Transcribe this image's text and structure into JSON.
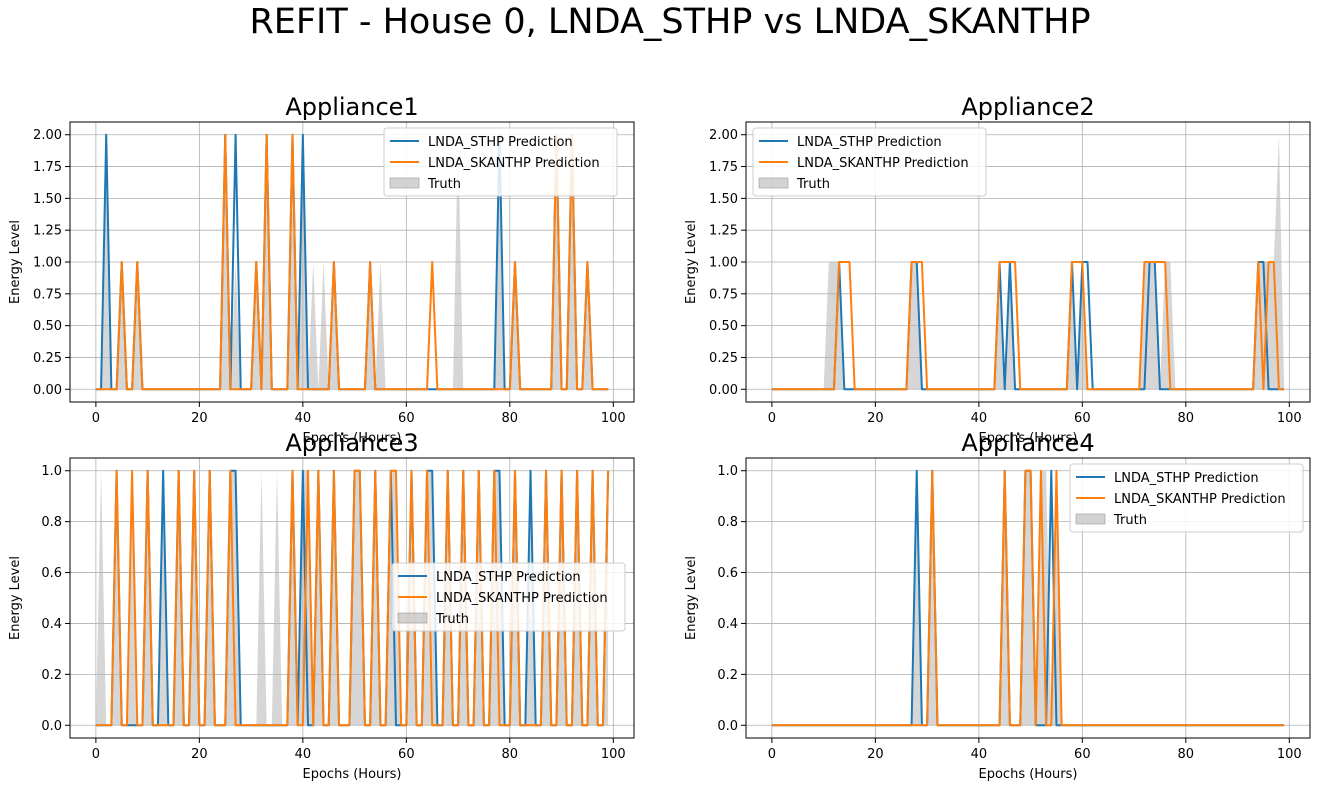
{
  "figure_title": "REFIT - House 0, LNDA_STHP vs LNDA_SKANTHP",
  "colors": {
    "stbp": "#1f77b4",
    "skanthp": "#ff7f0e",
    "truth": "#b5b5b5",
    "grid": "#b0b0b0"
  },
  "chart_data": [
    {
      "type": "line",
      "title": "Appliance1",
      "xlabel": "Epochs (Hours)",
      "ylabel": "Energy Level",
      "xlim": [
        -5,
        104
      ],
      "ylim": [
        -0.1,
        2.1
      ],
      "xticks": [
        0,
        20,
        40,
        60,
        80,
        100
      ],
      "xtick_labels": [
        "0",
        "20",
        "40",
        "60",
        "80",
        "100"
      ],
      "yticks": [
        0,
        0.25,
        0.5,
        0.75,
        1.0,
        1.25,
        1.5,
        1.75,
        2.0
      ],
      "ytick_labels": [
        "0.00",
        "0.25",
        "0.50",
        "0.75",
        "1.00",
        "1.25",
        "1.50",
        "1.75",
        "2.00"
      ],
      "grid": true,
      "legend": {
        "position": "upper right",
        "entries": [
          "LNDA_STHP Prediction",
          "LNDA_SKANTHP Prediction",
          "Truth"
        ]
      },
      "x_range": [
        0,
        99
      ],
      "series": [
        {
          "name": "LNDA_STHP Prediction",
          "nonzero": [
            [
              2,
              2
            ],
            [
              5,
              1
            ],
            [
              8,
              1
            ],
            [
              25,
              2
            ],
            [
              27,
              2
            ],
            [
              31,
              1
            ],
            [
              33,
              2
            ],
            [
              38,
              2
            ],
            [
              40,
              2
            ],
            [
              46,
              1
            ],
            [
              53,
              1
            ],
            [
              78,
              2
            ],
            [
              81,
              1
            ],
            [
              89,
              2
            ],
            [
              92,
              2
            ],
            [
              95,
              1
            ]
          ]
        },
        {
          "name": "LNDA_SKANTHP Prediction",
          "nonzero": [
            [
              5,
              1
            ],
            [
              8,
              1
            ],
            [
              25,
              2
            ],
            [
              31,
              1
            ],
            [
              33,
              2
            ],
            [
              38,
              2
            ],
            [
              46,
              1
            ],
            [
              53,
              1
            ],
            [
              65,
              1
            ],
            [
              81,
              1
            ],
            [
              89,
              2
            ],
            [
              92,
              2
            ],
            [
              95,
              1
            ]
          ]
        },
        {
          "name": "Truth",
          "nonzero": [
            [
              2,
              2
            ],
            [
              5,
              1
            ],
            [
              8,
              1
            ],
            [
              25,
              2
            ],
            [
              27,
              1
            ],
            [
              31,
              1
            ],
            [
              33,
              2
            ],
            [
              38,
              2
            ],
            [
              40,
              2
            ],
            [
              42,
              1
            ],
            [
              44,
              1
            ],
            [
              46,
              1
            ],
            [
              53,
              1
            ],
            [
              55,
              1
            ],
            [
              70,
              2
            ],
            [
              78,
              2
            ],
            [
              81,
              1
            ],
            [
              89,
              2
            ],
            [
              92,
              2
            ],
            [
              95,
              1
            ]
          ]
        }
      ]
    },
    {
      "type": "line",
      "title": "Appliance2",
      "xlabel": "Epochs (Hours)",
      "ylabel": "Energy Level",
      "xlim": [
        -5,
        104
      ],
      "ylim": [
        -0.1,
        2.1
      ],
      "xticks": [
        0,
        20,
        40,
        60,
        80,
        100
      ],
      "xtick_labels": [
        "0",
        "20",
        "40",
        "60",
        "80",
        "100"
      ],
      "yticks": [
        0,
        0.25,
        0.5,
        0.75,
        1.0,
        1.25,
        1.5,
        1.75,
        2.0
      ],
      "ytick_labels": [
        "0.00",
        "0.25",
        "0.50",
        "0.75",
        "1.00",
        "1.25",
        "1.50",
        "1.75",
        "2.00"
      ],
      "grid": true,
      "legend": {
        "position": "upper left",
        "entries": [
          "LNDA_STHP Prediction",
          "LNDA_SKANTHP Prediction",
          "Truth"
        ]
      },
      "x_range": [
        0,
        99
      ],
      "series": [
        {
          "name": "LNDA_STHP Prediction",
          "nonzero": [
            [
              13,
              1
            ],
            [
              27,
              1
            ],
            [
              28,
              1
            ],
            [
              44,
              1
            ],
            [
              46,
              1
            ],
            [
              58,
              1
            ],
            [
              60,
              1
            ],
            [
              61,
              1
            ],
            [
              73,
              1
            ],
            [
              74,
              1
            ],
            [
              94,
              1
            ],
            [
              95,
              1
            ]
          ]
        },
        {
          "name": "LNDA_SKANTHP Prediction",
          "nonzero": [
            [
              13,
              1
            ],
            [
              14,
              1
            ],
            [
              15,
              1
            ],
            [
              27,
              1
            ],
            [
              28,
              1
            ],
            [
              29,
              1
            ],
            [
              44,
              1
            ],
            [
              45,
              1
            ],
            [
              46,
              1
            ],
            [
              47,
              1
            ],
            [
              58,
              1
            ],
            [
              59,
              1
            ],
            [
              60,
              1
            ],
            [
              72,
              1
            ],
            [
              73,
              1
            ],
            [
              74,
              1
            ],
            [
              75,
              1
            ],
            [
              76,
              1
            ],
            [
              94,
              1
            ],
            [
              96,
              1
            ],
            [
              97,
              1
            ]
          ]
        },
        {
          "name": "Truth",
          "nonzero": [
            [
              11,
              1
            ],
            [
              12,
              1
            ],
            [
              13,
              1
            ],
            [
              27,
              1
            ],
            [
              28,
              1
            ],
            [
              44,
              1
            ],
            [
              46,
              1
            ],
            [
              58,
              1
            ],
            [
              60,
              1
            ],
            [
              72,
              1
            ],
            [
              73,
              1
            ],
            [
              74,
              1
            ],
            [
              76,
              1
            ],
            [
              77,
              1
            ],
            [
              94,
              1
            ],
            [
              95,
              1
            ],
            [
              96,
              1
            ],
            [
              97,
              1
            ],
            [
              98,
              2
            ]
          ]
        }
      ]
    },
    {
      "type": "line",
      "title": "Appliance3",
      "xlabel": "Epochs (Hours)",
      "ylabel": "Energy Level",
      "xlim": [
        -5,
        104
      ],
      "ylim": [
        -0.05,
        1.05
      ],
      "xticks": [
        0,
        20,
        40,
        60,
        80,
        100
      ],
      "xtick_labels": [
        "0",
        "20",
        "40",
        "60",
        "80",
        "100"
      ],
      "yticks": [
        0,
        0.2,
        0.4,
        0.6,
        0.8,
        1.0
      ],
      "ytick_labels": [
        "0.0",
        "0.2",
        "0.4",
        "0.6",
        "0.8",
        "1.0"
      ],
      "grid": true,
      "legend": {
        "position": "center right",
        "entries": [
          "LNDA_STHP Prediction",
          "LNDA_SKANTHP Prediction",
          "Truth"
        ]
      },
      "x_range": [
        0,
        99
      ],
      "series": [
        {
          "name": "LNDA_STHP Prediction",
          "nonzero": [
            [
              4,
              1
            ],
            [
              10,
              1
            ],
            [
              13,
              1
            ],
            [
              16,
              1
            ],
            [
              19,
              1
            ],
            [
              22,
              1
            ],
            [
              26,
              1
            ],
            [
              27,
              1
            ],
            [
              38,
              1
            ],
            [
              40,
              1
            ],
            [
              43,
              1
            ],
            [
              46,
              1
            ],
            [
              50,
              1
            ],
            [
              51,
              1
            ],
            [
              54,
              1
            ],
            [
              57,
              1
            ],
            [
              61,
              1
            ],
            [
              64,
              1
            ],
            [
              65,
              1
            ],
            [
              68,
              1
            ],
            [
              71,
              1
            ],
            [
              74,
              1
            ],
            [
              77,
              1
            ],
            [
              78,
              1
            ],
            [
              81,
              1
            ],
            [
              84,
              1
            ],
            [
              87,
              1
            ],
            [
              90,
              1
            ],
            [
              93,
              1
            ],
            [
              96,
              1
            ],
            [
              99,
              1
            ]
          ]
        },
        {
          "name": "LNDA_SKANTHP Prediction",
          "nonzero": [
            [
              4,
              1
            ],
            [
              7,
              1
            ],
            [
              10,
              1
            ],
            [
              16,
              1
            ],
            [
              19,
              1
            ],
            [
              22,
              1
            ],
            [
              26,
              1
            ],
            [
              38,
              1
            ],
            [
              41,
              1
            ],
            [
              43,
              1
            ],
            [
              46,
              1
            ],
            [
              50,
              1
            ],
            [
              51,
              1
            ],
            [
              54,
              1
            ],
            [
              57,
              1
            ],
            [
              58,
              1
            ],
            [
              61,
              1
            ],
            [
              64,
              1
            ],
            [
              68,
              1
            ],
            [
              71,
              1
            ],
            [
              74,
              1
            ],
            [
              77,
              1
            ],
            [
              81,
              1
            ],
            [
              87,
              1
            ],
            [
              90,
              1
            ],
            [
              93,
              1
            ],
            [
              96,
              1
            ],
            [
              99,
              1
            ]
          ]
        },
        {
          "name": "Truth",
          "nonzero": [
            [
              1,
              1
            ],
            [
              4,
              1
            ],
            [
              7,
              1
            ],
            [
              10,
              1
            ],
            [
              13,
              1
            ],
            [
              16,
              1
            ],
            [
              19,
              1
            ],
            [
              22,
              1
            ],
            [
              26,
              1
            ],
            [
              27,
              1
            ],
            [
              32,
              1
            ],
            [
              35,
              1
            ],
            [
              38,
              1
            ],
            [
              40,
              1
            ],
            [
              41,
              1
            ],
            [
              43,
              1
            ],
            [
              46,
              1
            ],
            [
              50,
              1
            ],
            [
              51,
              1
            ],
            [
              54,
              1
            ],
            [
              57,
              1
            ],
            [
              58,
              1
            ],
            [
              61,
              1
            ],
            [
              64,
              1
            ],
            [
              65,
              1
            ],
            [
              68,
              1
            ],
            [
              71,
              1
            ],
            [
              74,
              1
            ],
            [
              77,
              1
            ],
            [
              78,
              1
            ],
            [
              81,
              1
            ],
            [
              84,
              1
            ],
            [
              87,
              1
            ],
            [
              90,
              1
            ],
            [
              93,
              1
            ],
            [
              96,
              1
            ],
            [
              99,
              1
            ]
          ]
        }
      ]
    },
    {
      "type": "line",
      "title": "Appliance4",
      "xlabel": "Epochs (Hours)",
      "ylabel": "Energy Level",
      "xlim": [
        -5,
        104
      ],
      "ylim": [
        -0.05,
        1.05
      ],
      "xticks": [
        0,
        20,
        40,
        60,
        80,
        100
      ],
      "xtick_labels": [
        "0",
        "20",
        "40",
        "60",
        "80",
        "100"
      ],
      "yticks": [
        0,
        0.2,
        0.4,
        0.6,
        0.8,
        1.0
      ],
      "ytick_labels": [
        "0.0",
        "0.2",
        "0.4",
        "0.6",
        "0.8",
        "1.0"
      ],
      "grid": true,
      "legend": {
        "position": "upper right",
        "entries": [
          "LNDA_STHP Prediction",
          "LNDA_SKANTHP Prediction",
          "Truth"
        ]
      },
      "x_range": [
        0,
        99
      ],
      "series": [
        {
          "name": "LNDA_STHP Prediction",
          "nonzero": [
            [
              28,
              1
            ],
            [
              31,
              1
            ],
            [
              45,
              1
            ],
            [
              49,
              1
            ],
            [
              50,
              1
            ],
            [
              54,
              1
            ]
          ]
        },
        {
          "name": "LNDA_SKANTHP Prediction",
          "nonzero": [
            [
              31,
              1
            ],
            [
              45,
              1
            ],
            [
              49,
              1
            ],
            [
              50,
              1
            ],
            [
              52,
              1
            ],
            [
              55,
              1
            ]
          ]
        },
        {
          "name": "Truth",
          "nonzero": [
            [
              28,
              1
            ],
            [
              31,
              1
            ],
            [
              45,
              1
            ],
            [
              49,
              1
            ],
            [
              50,
              1
            ],
            [
              52,
              1
            ],
            [
              53,
              1
            ],
            [
              55,
              1
            ]
          ]
        }
      ]
    }
  ]
}
